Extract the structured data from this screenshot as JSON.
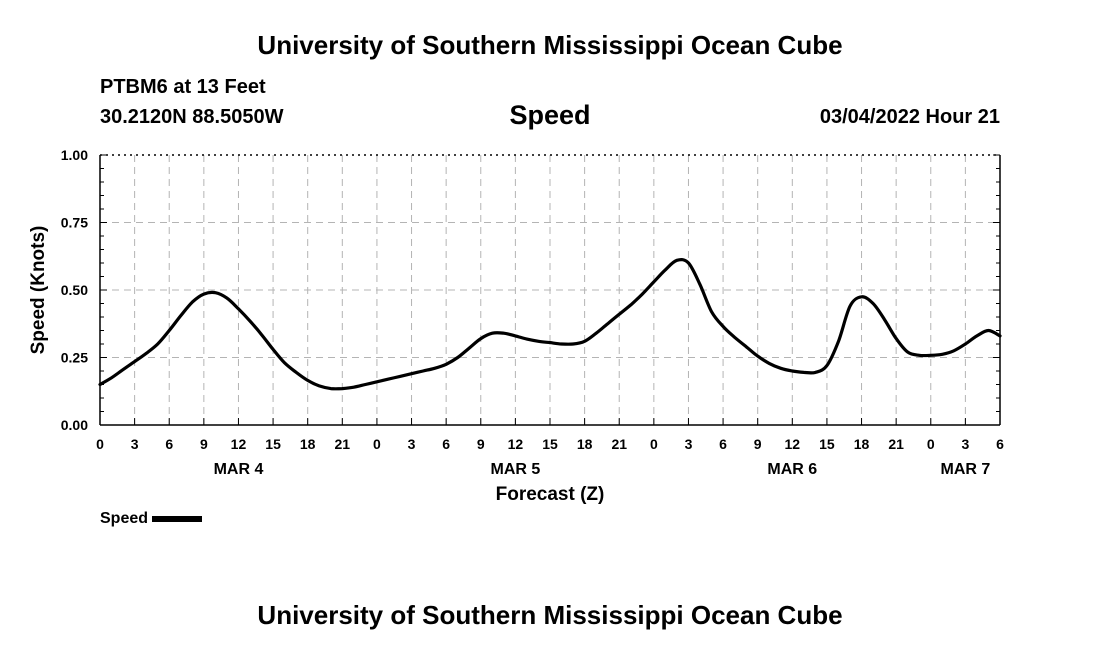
{
  "header": {
    "title": "University of Southern Mississippi Ocean Cube",
    "station": "PTBM6 at 13 Feet",
    "coords": "30.2120N  88.5050W",
    "variable": "Speed",
    "timestamp": "03/04/2022 Hour 21"
  },
  "footer": {
    "title": "University of Southern Mississippi Ocean Cube"
  },
  "chart_data": {
    "type": "line",
    "title": "Speed",
    "xlabel": "Forecast (Z)",
    "ylabel": "Speed (Knots)",
    "xlim": [
      0,
      78
    ],
    "ylim": [
      0,
      1.0
    ],
    "grid": true,
    "x_tick_step_hours": 3,
    "x_tick_labels": [
      "0",
      "3",
      "6",
      "9",
      "12",
      "15",
      "18",
      "21",
      "0",
      "3",
      "6",
      "9",
      "12",
      "15",
      "18",
      "21",
      "0",
      "3",
      "6",
      "9",
      "12",
      "15",
      "18",
      "21",
      "0",
      "3",
      "6"
    ],
    "y_tick_labels": [
      "0.00",
      "0.25",
      "0.50",
      "0.75",
      "1.00"
    ],
    "y_ticks": [
      0,
      0.25,
      0.5,
      0.75,
      1.0
    ],
    "date_labels": [
      {
        "hour": 12,
        "label": "MAR 4"
      },
      {
        "hour": 36,
        "label": "MAR 5"
      },
      {
        "hour": 60,
        "label": "MAR 6"
      },
      {
        "hour": 75,
        "label": "MAR 7"
      }
    ],
    "series": [
      {
        "name": "Speed",
        "color": "#000000",
        "x": [
          0,
          1,
          2,
          3,
          4,
          5,
          6,
          7,
          8,
          9,
          10,
          11,
          12,
          13,
          14,
          15,
          16,
          17,
          18,
          19,
          20,
          21,
          22,
          23,
          24,
          25,
          26,
          27,
          28,
          29,
          30,
          31,
          32,
          33,
          34,
          35,
          36,
          37,
          38,
          39,
          40,
          41,
          42,
          43,
          44,
          45,
          46,
          47,
          48,
          49,
          50,
          51,
          52,
          53,
          54,
          55,
          56,
          57,
          58,
          59,
          60,
          61,
          62,
          63,
          64,
          65,
          66,
          67,
          68,
          69,
          70,
          71,
          72,
          73,
          74,
          75,
          76,
          77,
          78
        ],
        "values": [
          0.15,
          0.175,
          0.205,
          0.235,
          0.265,
          0.3,
          0.35,
          0.405,
          0.455,
          0.485,
          0.49,
          0.47,
          0.43,
          0.385,
          0.335,
          0.28,
          0.23,
          0.195,
          0.165,
          0.145,
          0.135,
          0.135,
          0.14,
          0.15,
          0.16,
          0.17,
          0.18,
          0.19,
          0.2,
          0.21,
          0.225,
          0.25,
          0.285,
          0.32,
          0.34,
          0.34,
          0.33,
          0.318,
          0.31,
          0.305,
          0.3,
          0.3,
          0.31,
          0.34,
          0.375,
          0.41,
          0.445,
          0.485,
          0.53,
          0.575,
          0.61,
          0.6,
          0.52,
          0.42,
          0.365,
          0.325,
          0.29,
          0.255,
          0.228,
          0.21,
          0.2,
          0.195,
          0.195,
          0.22,
          0.31,
          0.44,
          0.475,
          0.45,
          0.39,
          0.32,
          0.27,
          0.258,
          0.258,
          0.262,
          0.275,
          0.3,
          0.33,
          0.35,
          0.33
        ]
      }
    ],
    "legend": {
      "label": "Speed",
      "placement": "bottom-left"
    }
  }
}
